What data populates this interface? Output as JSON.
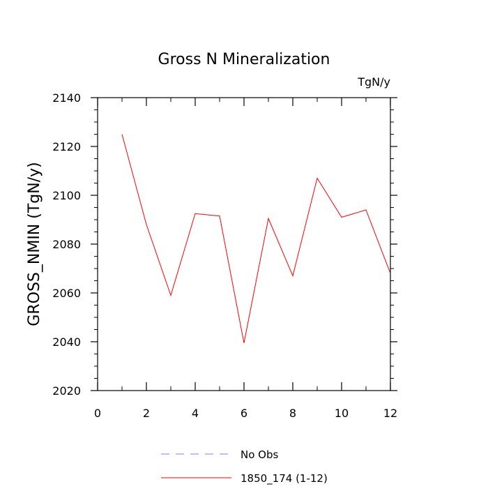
{
  "chart_data": {
    "type": "line",
    "title": "Gross N Mineralization",
    "units_label": "TgN/y",
    "xlabel": "",
    "ylabel": "GROSS_NMIN  (TgN/y)",
    "xlim": [
      0,
      12
    ],
    "ylim": [
      2020,
      2140
    ],
    "x_ticks": [
      "0",
      "2",
      "4",
      "6",
      "8",
      "10",
      "12"
    ],
    "y_ticks": [
      "2020",
      "2040",
      "2060",
      "2080",
      "2100",
      "2120",
      "2140"
    ],
    "series": [
      {
        "name": "1850_174 (1-12)",
        "color": "#ff0000",
        "dash": "solid",
        "x": [
          1,
          2,
          3,
          4,
          5,
          6,
          7,
          8,
          9,
          10,
          11,
          12
        ],
        "values": [
          2125,
          2088,
          2059,
          2092.5,
          2091.5,
          2039.5,
          2090.5,
          2067,
          2107,
          2091,
          2094,
          2068
        ]
      }
    ],
    "legend": {
      "placement": "bottom-center",
      "entries": [
        {
          "label": "No Obs",
          "color": "#7f7fff",
          "dash": "dashed"
        },
        {
          "label": "1850_174 (1-12)",
          "color": "#ff0000",
          "dash": "solid"
        }
      ]
    }
  }
}
